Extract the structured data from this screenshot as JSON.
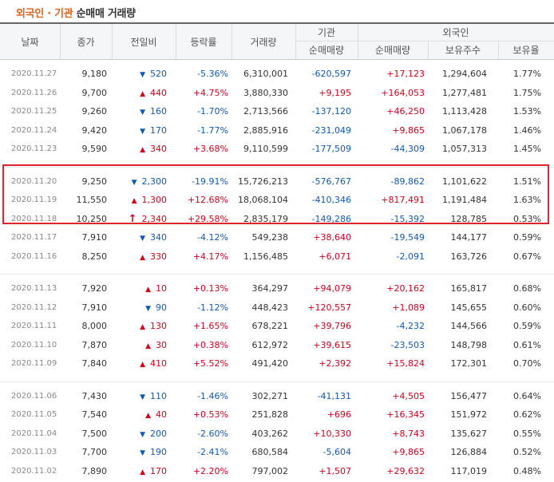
{
  "title": {
    "part1": "외국인",
    "dot": " · ",
    "part2": "기관",
    "part3": " 순매매 거래량"
  },
  "headers": {
    "date": "날짜",
    "close": "종가",
    "change": "전일비",
    "rate": "등락률",
    "volume": "거래량",
    "inst": "기관",
    "inst_net": "순매매량",
    "foreign": "외국인",
    "foreign_net": "순매매량",
    "foreign_hold": "보유주수",
    "foreign_ratio": "보유율"
  },
  "colors": {
    "up": "#d0021b",
    "down": "#1259b0",
    "highlight": "#e0242e",
    "title_accent": "#e0621f"
  },
  "groups": [
    [
      {
        "date": "2020.11.27",
        "close": "9,180",
        "dir": "down",
        "chg": "520",
        "rate": "-5.36%",
        "vol": "6,310,001",
        "inst": "-620,597",
        "forn": "+17,123",
        "hold": "1,294,604",
        "ratio": "1.77%"
      },
      {
        "date": "2020.11.26",
        "close": "9,700",
        "dir": "up",
        "chg": "440",
        "rate": "+4.75%",
        "vol": "3,880,330",
        "inst": "+9,195",
        "forn": "+164,053",
        "hold": "1,277,481",
        "ratio": "1.75%"
      },
      {
        "date": "2020.11.25",
        "close": "9,260",
        "dir": "down",
        "chg": "160",
        "rate": "-1.70%",
        "vol": "2,713,566",
        "inst": "-137,120",
        "forn": "+46,250",
        "hold": "1,113,428",
        "ratio": "1.53%"
      },
      {
        "date": "2020.11.24",
        "close": "9,420",
        "dir": "down",
        "chg": "170",
        "rate": "-1.77%",
        "vol": "2,885,916",
        "inst": "-231,049",
        "forn": "+9,865",
        "hold": "1,067,178",
        "ratio": "1.46%"
      },
      {
        "date": "2020.11.23",
        "close": "9,590",
        "dir": "up",
        "chg": "340",
        "rate": "+3.68%",
        "vol": "9,110,599",
        "inst": "-177,509",
        "forn": "-44,309",
        "hold": "1,057,313",
        "ratio": "1.45%"
      }
    ],
    [
      {
        "date": "2020.11.20",
        "close": "9,250",
        "dir": "down",
        "chg": "2,300",
        "rate": "-19.91%",
        "vol": "15,726,213",
        "inst": "-576,767",
        "forn": "-89,862",
        "hold": "1,101,622",
        "ratio": "1.51%"
      },
      {
        "date": "2020.11.19",
        "close": "11,550",
        "dir": "up",
        "chg": "1,300",
        "rate": "+12.68%",
        "vol": "18,068,104",
        "inst": "-410,346",
        "forn": "+817,491",
        "hold": "1,191,484",
        "ratio": "1.63%"
      },
      {
        "date": "2020.11.18",
        "close": "10,250",
        "dir": "limitup",
        "chg": "2,340",
        "rate": "+29.58%",
        "vol": "2,835,179",
        "inst": "-149,286",
        "forn": "-15,392",
        "hold": "128,785",
        "ratio": "0.53%"
      },
      {
        "date": "2020.11.17",
        "close": "7,910",
        "dir": "down",
        "chg": "340",
        "rate": "-4.12%",
        "vol": "549,238",
        "inst": "+38,640",
        "forn": "-19,549",
        "hold": "144,177",
        "ratio": "0.59%"
      },
      {
        "date": "2020.11.16",
        "close": "8,250",
        "dir": "up",
        "chg": "330",
        "rate": "+4.17%",
        "vol": "1,156,485",
        "inst": "+6,071",
        "forn": "-2,091",
        "hold": "163,726",
        "ratio": "0.67%"
      }
    ],
    [
      {
        "date": "2020.11.13",
        "close": "7,920",
        "dir": "up",
        "chg": "10",
        "rate": "+0.13%",
        "vol": "364,297",
        "inst": "+94,079",
        "forn": "+20,162",
        "hold": "165,817",
        "ratio": "0.68%"
      },
      {
        "date": "2020.11.12",
        "close": "7,910",
        "dir": "down",
        "chg": "90",
        "rate": "-1.12%",
        "vol": "448,423",
        "inst": "+120,557",
        "forn": "+1,089",
        "hold": "145,655",
        "ratio": "0.60%"
      },
      {
        "date": "2020.11.11",
        "close": "8,000",
        "dir": "up",
        "chg": "130",
        "rate": "+1.65%",
        "vol": "678,221",
        "inst": "+39,796",
        "forn": "-4,232",
        "hold": "144,566",
        "ratio": "0.59%"
      },
      {
        "date": "2020.11.10",
        "close": "7,870",
        "dir": "up",
        "chg": "30",
        "rate": "+0.38%",
        "vol": "612,972",
        "inst": "+39,615",
        "forn": "-23,503",
        "hold": "148,798",
        "ratio": "0.61%"
      },
      {
        "date": "2020.11.09",
        "close": "7,840",
        "dir": "up",
        "chg": "410",
        "rate": "+5.52%",
        "vol": "491,420",
        "inst": "+2,392",
        "forn": "+15,824",
        "hold": "172,301",
        "ratio": "0.70%"
      }
    ],
    [
      {
        "date": "2020.11.06",
        "close": "7,430",
        "dir": "down",
        "chg": "110",
        "rate": "-1.46%",
        "vol": "302,271",
        "inst": "-41,131",
        "forn": "+4,505",
        "hold": "156,477",
        "ratio": "0.64%"
      },
      {
        "date": "2020.11.05",
        "close": "7,540",
        "dir": "up",
        "chg": "40",
        "rate": "+0.53%",
        "vol": "251,828",
        "inst": "+696",
        "forn": "+16,345",
        "hold": "151,972",
        "ratio": "0.62%"
      },
      {
        "date": "2020.11.04",
        "close": "7,500",
        "dir": "down",
        "chg": "200",
        "rate": "-2.60%",
        "vol": "403,262",
        "inst": "+10,330",
        "forn": "+8,743",
        "hold": "135,627",
        "ratio": "0.55%"
      },
      {
        "date": "2020.11.03",
        "close": "7,700",
        "dir": "down",
        "chg": "190",
        "rate": "-2.41%",
        "vol": "680,584",
        "inst": "-5,604",
        "forn": "+9,865",
        "hold": "126,884",
        "ratio": "0.52%"
      },
      {
        "date": "2020.11.02",
        "close": "7,890",
        "dir": "up",
        "chg": "170",
        "rate": "+2.20%",
        "vol": "797,002",
        "inst": "+1,507",
        "forn": "+29,632",
        "hold": "117,019",
        "ratio": "0.48%"
      }
    ]
  ]
}
